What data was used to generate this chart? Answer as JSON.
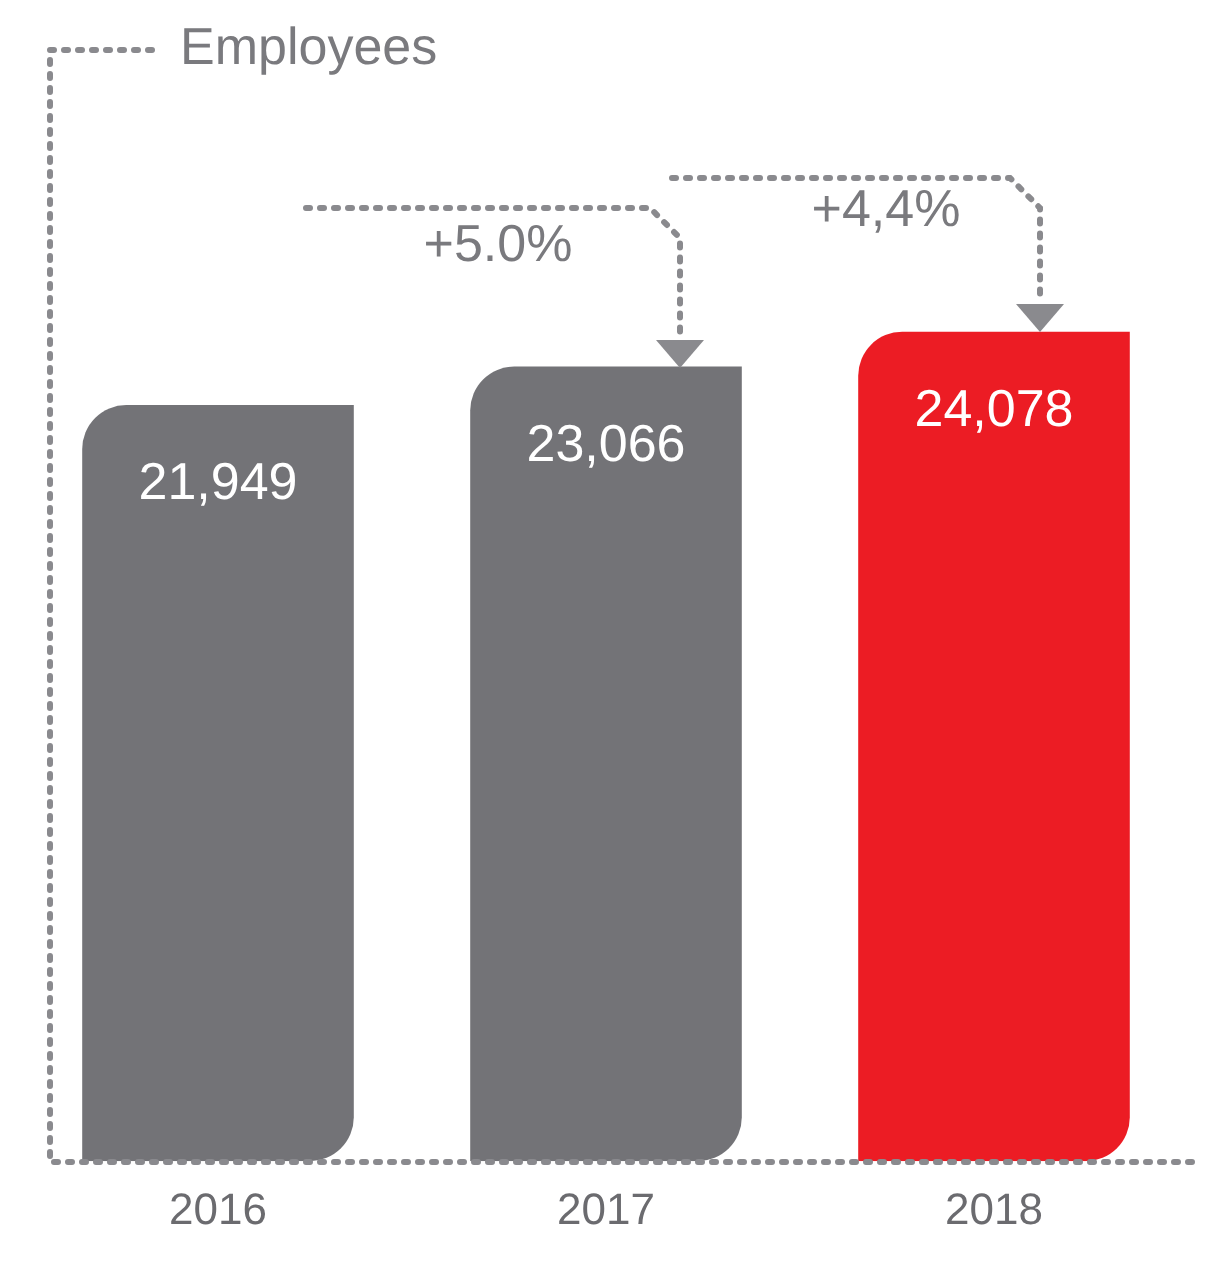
{
  "chart_data": {
    "type": "bar",
    "title": "Employees",
    "categories": [
      "2016",
      "2017",
      "2018"
    ],
    "values": [
      21949,
      23066,
      24078
    ],
    "colors": [
      "#737377",
      "#737377",
      "#ec1c24"
    ],
    "value_labels": [
      "21,949",
      "23,066",
      "24,078"
    ],
    "annotations": [
      "+5.0%",
      "+4,4%"
    ],
    "grid": false,
    "legend": false
  }
}
